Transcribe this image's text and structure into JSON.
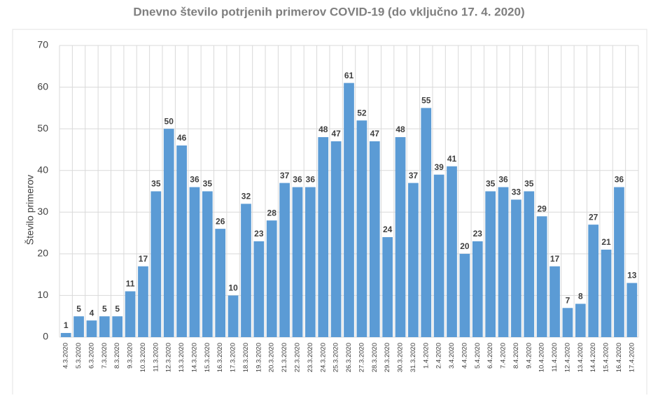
{
  "chart_data": {
    "type": "bar",
    "title": "Dnevno število potrjenih primerov COVID-19 (do vključno 17. 4. 2020)",
    "y_label": "Število primerov",
    "categories": [
      "4.3.2020",
      "5.3.2020",
      "6.3.2020",
      "7.3.2020",
      "8.3.2020",
      "9.3.2020",
      "10.3.2020",
      "11.3.2020",
      "12.3.2020",
      "13.3.2020",
      "14.3.2020",
      "15.3.2020",
      "16.3.2020",
      "17.3.2020",
      "18.3.2020",
      "19.3.2020",
      "20.3.2020",
      "21.3.2020",
      "22.3.2020",
      "23.3.2020",
      "24.3.2020",
      "25.3.2020",
      "26.3.2020",
      "27.3.2020",
      "28.3.2020",
      "29.3.2020",
      "30.3.2020",
      "31.3.2020",
      "1.4.2020",
      "2.4.2020",
      "3.4.2020",
      "4.4.2020",
      "5.4.2020",
      "6.4.2020",
      "7.4.2020",
      "8.4.2020",
      "9.4.2020",
      "10.4.2020",
      "11.4.2020",
      "12.4.2020",
      "13.4.2020",
      "14.4.2020",
      "15.4.2020",
      "16.4.2020",
      "17.4.2020"
    ],
    "values": [
      1,
      5,
      4,
      5,
      5,
      11,
      17,
      35,
      50,
      46,
      36,
      35,
      26,
      10,
      32,
      23,
      28,
      37,
      36,
      36,
      48,
      47,
      61,
      52,
      47,
      24,
      48,
      37,
      55,
      39,
      41,
      20,
      23,
      35,
      36,
      33,
      35,
      29,
      17,
      7,
      8,
      27,
      21,
      36,
      13
    ],
    "color": "#5b9bd5",
    "ylim": [
      0,
      70
    ],
    "yticks": [
      0,
      10,
      20,
      30,
      40,
      50,
      60,
      70
    ],
    "grid": true
  }
}
